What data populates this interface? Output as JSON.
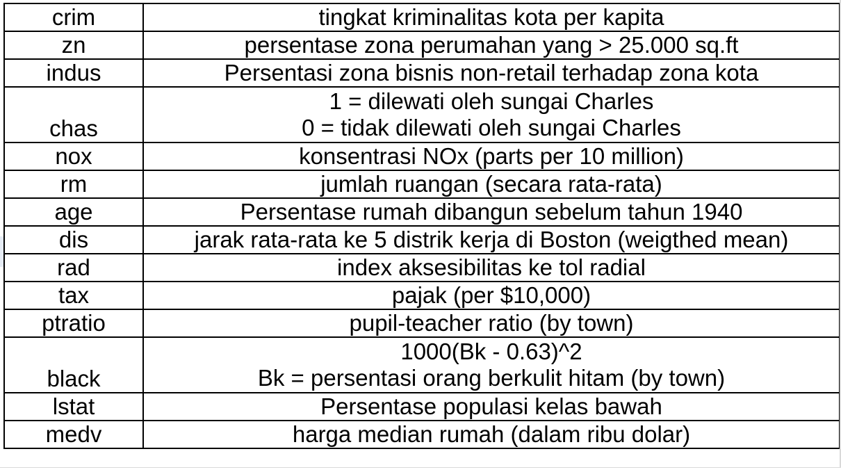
{
  "rows": [
    {
      "name": "crim",
      "lines": [
        "tingkat kriminalitas kota per kapita"
      ]
    },
    {
      "name": "zn",
      "lines": [
        "persentase zona perumahan yang > 25.000 sq.ft"
      ]
    },
    {
      "name": "indus",
      "lines": [
        "Persentasi zona bisnis non-retail terhadap zona kota"
      ]
    },
    {
      "name": "chas",
      "lines": [
        "1 = dilewati oleh sungai Charles",
        "0 = tidak dilewati oleh sungai Charles"
      ]
    },
    {
      "name": "nox",
      "lines": [
        "konsentrasi NOx (parts per 10 million)"
      ]
    },
    {
      "name": "rm",
      "lines": [
        "jumlah ruangan (secara rata-rata)"
      ]
    },
    {
      "name": "age",
      "lines": [
        "Persentase rumah dibangun sebelum tahun 1940"
      ]
    },
    {
      "name": "dis",
      "lines": [
        "jarak rata-rata ke 5 distrik kerja di Boston (weigthed mean)"
      ]
    },
    {
      "name": "rad",
      "lines": [
        "index aksesibilitas ke tol radial"
      ]
    },
    {
      "name": "tax",
      "lines": [
        "pajak (per $10,000)"
      ]
    },
    {
      "name": "ptratio",
      "lines": [
        "pupil-teacher ratio (by town)"
      ]
    },
    {
      "name": "black",
      "lines": [
        "1000(Bk - 0.63)^2",
        "Bk = persentasi orang berkulit hitam (by town)"
      ]
    },
    {
      "name": "lstat",
      "lines": [
        "Persentase populasi kelas bawah"
      ]
    },
    {
      "name": "medv",
      "lines": [
        "harga median rumah (dalam ribu dolar)"
      ]
    }
  ]
}
